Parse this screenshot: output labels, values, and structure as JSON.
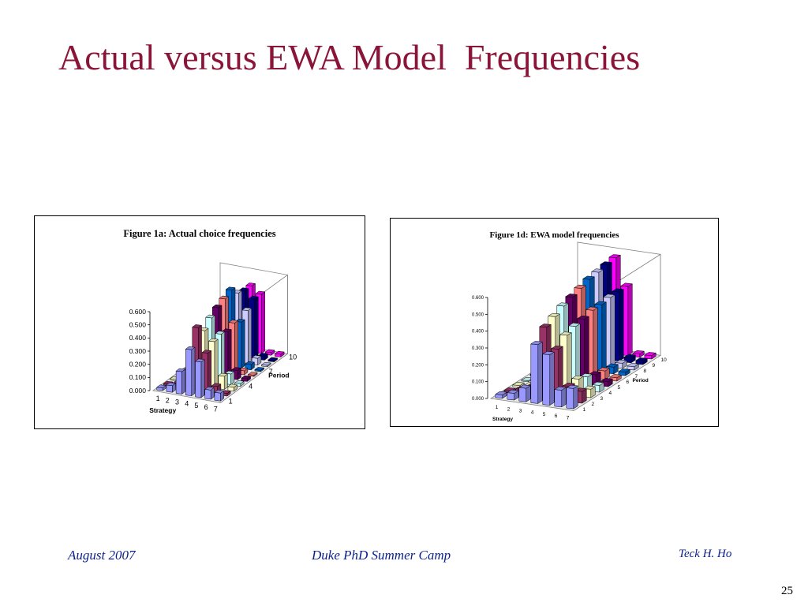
{
  "slide": {
    "title": "Actual versus EWA Model  Frequencies",
    "footer_left": "August 2007",
    "footer_center": "Duke PhD Summer Camp",
    "footer_right": "Teck H. Ho",
    "page_number": "25"
  },
  "colors": {
    "title": "#8a1538",
    "footer": "#0a1f8f",
    "series": [
      "#9999ff",
      "#993366",
      "#ffffcc",
      "#ccffff",
      "#660066",
      "#ff8080",
      "#0066cc",
      "#ccccff",
      "#000080",
      "#ff00ff"
    ]
  },
  "chart_data": [
    {
      "type": "bar3d",
      "title": "Figure 1a: Actual choice frequencies",
      "xlabel": "Strategy",
      "ylabel": "Period",
      "x_ticks": [
        "1",
        "2",
        "3",
        "4",
        "5",
        "6",
        "7"
      ],
      "y_ticks": [
        "1",
        "4",
        "7",
        "10"
      ],
      "z_ticks": [
        "0.000",
        "0.100",
        "0.200",
        "0.300",
        "0.400",
        "0.500",
        "0.600"
      ],
      "zlim": [
        0,
        0.6
      ],
      "periods": [
        "1",
        "2",
        "3",
        "4",
        "5",
        "6",
        "7",
        "8",
        "9",
        "10"
      ],
      "values": [
        [
          0.02,
          0.05,
          0.17,
          0.35,
          0.27,
          0.07,
          0.06
        ],
        [
          0.01,
          0.03,
          0.1,
          0.48,
          0.3,
          0.06,
          0.02
        ],
        [
          0.01,
          0.02,
          0.06,
          0.42,
          0.35,
          0.1,
          0.03
        ],
        [
          0.0,
          0.01,
          0.04,
          0.48,
          0.37,
          0.08,
          0.02
        ],
        [
          0.0,
          0.01,
          0.03,
          0.52,
          0.35,
          0.07,
          0.02
        ],
        [
          0.0,
          0.01,
          0.02,
          0.55,
          0.38,
          0.03,
          0.01
        ],
        [
          0.0,
          0.0,
          0.02,
          0.58,
          0.35,
          0.04,
          0.01
        ],
        [
          0.0,
          0.0,
          0.01,
          0.52,
          0.4,
          0.05,
          0.01
        ],
        [
          0.0,
          0.0,
          0.01,
          0.5,
          0.45,
          0.03,
          0.01
        ],
        [
          0.0,
          0.0,
          0.01,
          0.5,
          0.45,
          0.02,
          0.02
        ]
      ]
    },
    {
      "type": "bar3d",
      "title": "Figure 1d: EWA  model frequencies",
      "xlabel": "Strategy",
      "ylabel": "Period",
      "x_ticks": [
        "1",
        "2",
        "3",
        "4",
        "5",
        "6",
        "7"
      ],
      "y_ticks": [
        "1",
        "2",
        "3",
        "4",
        "5",
        "6",
        "7",
        "8",
        "9",
        "10"
      ],
      "z_ticks": [
        "0.000",
        "0.100",
        "0.200",
        "0.300",
        "0.400",
        "0.500",
        "0.600"
      ],
      "zlim": [
        0,
        0.6
      ],
      "periods": [
        "1",
        "2",
        "3",
        "4",
        "5",
        "6",
        "7",
        "8",
        "9",
        "10"
      ],
      "values": [
        [
          0.02,
          0.04,
          0.08,
          0.35,
          0.3,
          0.1,
          0.12
        ],
        [
          0.01,
          0.03,
          0.06,
          0.42,
          0.3,
          0.09,
          0.07
        ],
        [
          0.01,
          0.02,
          0.05,
          0.45,
          0.35,
          0.1,
          0.05
        ],
        [
          0.0,
          0.02,
          0.04,
          0.48,
          0.37,
          0.08,
          0.04
        ],
        [
          0.0,
          0.01,
          0.03,
          0.5,
          0.38,
          0.06,
          0.03
        ],
        [
          0.0,
          0.01,
          0.02,
          0.52,
          0.4,
          0.05,
          0.02
        ],
        [
          0.0,
          0.01,
          0.02,
          0.54,
          0.4,
          0.04,
          0.02
        ],
        [
          0.0,
          0.01,
          0.01,
          0.55,
          0.41,
          0.03,
          0.02
        ],
        [
          0.0,
          0.0,
          0.01,
          0.56,
          0.41,
          0.03,
          0.02
        ],
        [
          0.0,
          0.0,
          0.01,
          0.57,
          0.41,
          0.02,
          0.02
        ]
      ]
    }
  ]
}
